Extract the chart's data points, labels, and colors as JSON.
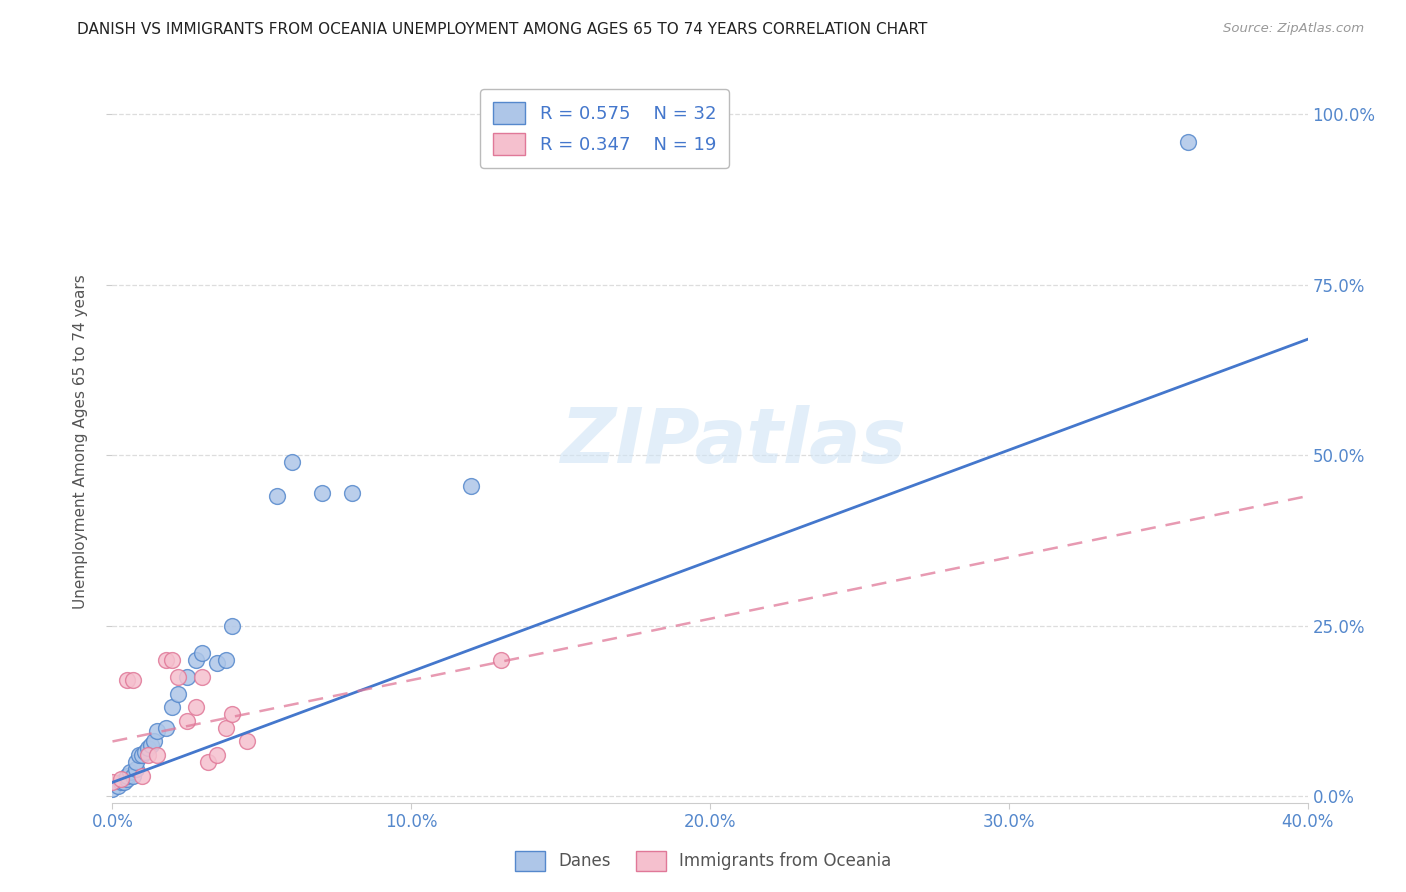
{
  "title": "DANISH VS IMMIGRANTS FROM OCEANIA UNEMPLOYMENT AMONG AGES 65 TO 74 YEARS CORRELATION CHART",
  "source": "Source: ZipAtlas.com",
  "ylabel": "Unemployment Among Ages 65 to 74 years",
  "xlim": [
    0.0,
    0.4
  ],
  "ylim": [
    -0.01,
    1.05
  ],
  "xtick_labels": [
    "0.0%",
    "10.0%",
    "20.0%",
    "30.0%",
    "40.0%"
  ],
  "xtick_vals": [
    0.0,
    0.1,
    0.2,
    0.3,
    0.4
  ],
  "ytick_labels": [
    "0.0%",
    "25.0%",
    "50.0%",
    "75.0%",
    "100.0%"
  ],
  "ytick_vals": [
    0.0,
    0.25,
    0.5,
    0.75,
    1.0
  ],
  "danes_color": "#aec6e8",
  "danes_edge_color": "#5588cc",
  "immigrants_color": "#f5c0ce",
  "immigrants_edge_color": "#e07898",
  "danes_line_color": "#4477cc",
  "immigrants_line_color": "#e07898",
  "legend_r_danes": "R = 0.575",
  "legend_n_danes": "N = 32",
  "legend_r_immigrants": "R = 0.347",
  "legend_n_immigrants": "N = 19",
  "danes_x": [
    0.0,
    0.002,
    0.003,
    0.004,
    0.005,
    0.005,
    0.006,
    0.007,
    0.008,
    0.008,
    0.009,
    0.01,
    0.011,
    0.012,
    0.013,
    0.014,
    0.015,
    0.018,
    0.02,
    0.022,
    0.025,
    0.028,
    0.03,
    0.035,
    0.038,
    0.04,
    0.055,
    0.06,
    0.07,
    0.08,
    0.12,
    0.36
  ],
  "danes_y": [
    0.01,
    0.015,
    0.02,
    0.02,
    0.025,
    0.03,
    0.035,
    0.03,
    0.04,
    0.05,
    0.06,
    0.06,
    0.065,
    0.07,
    0.075,
    0.08,
    0.095,
    0.1,
    0.13,
    0.15,
    0.175,
    0.2,
    0.21,
    0.195,
    0.2,
    0.25,
    0.44,
    0.49,
    0.445,
    0.445,
    0.455,
    0.96
  ],
  "immigrants_x": [
    0.0,
    0.003,
    0.005,
    0.007,
    0.01,
    0.012,
    0.015,
    0.018,
    0.02,
    0.022,
    0.025,
    0.028,
    0.03,
    0.032,
    0.035,
    0.038,
    0.04,
    0.045,
    0.13
  ],
  "immigrants_y": [
    0.02,
    0.025,
    0.17,
    0.17,
    0.03,
    0.06,
    0.06,
    0.2,
    0.2,
    0.175,
    0.11,
    0.13,
    0.175,
    0.05,
    0.06,
    0.1,
    0.12,
    0.08,
    0.2
  ],
  "background_color": "#ffffff",
  "grid_color": "#dddddd",
  "watermark": "ZIPatlas",
  "marker_size": 130,
  "danes_line_intercept": 0.02,
  "danes_line_slope": 1.625,
  "immigrants_line_intercept": 0.08,
  "immigrants_line_slope": 0.9
}
